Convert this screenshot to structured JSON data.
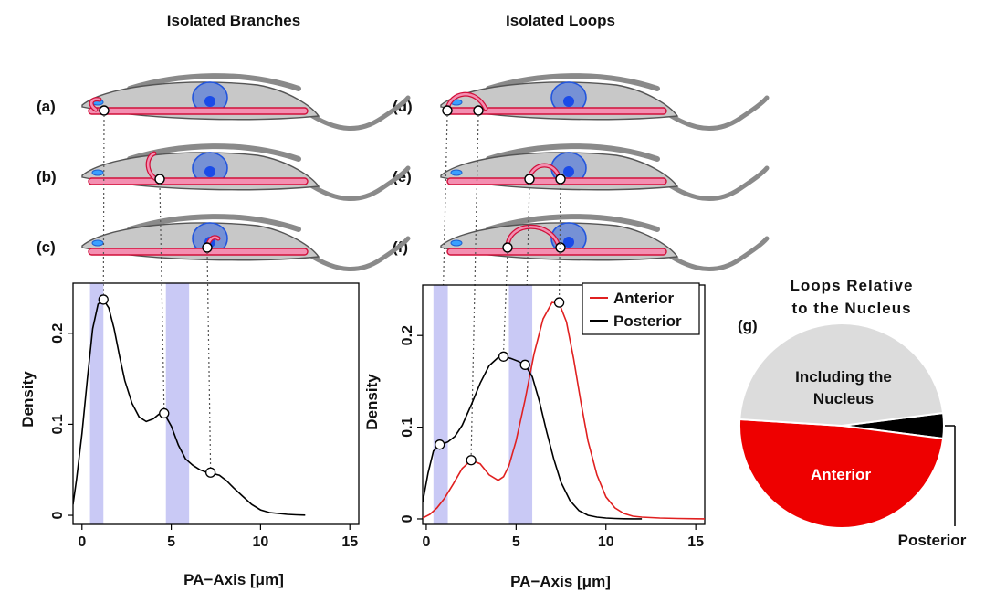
{
  "chart_data": [
    {
      "type": "line",
      "title": "Isolated Branches",
      "xlabel": "PA−Axis [μm]",
      "ylabel": "Density",
      "xlim": [
        -0.5,
        15.5
      ],
      "ylim": [
        -0.01,
        0.255
      ],
      "xticks": [
        0,
        5,
        10,
        15
      ],
      "yticks": [
        0,
        0.1,
        0.2
      ],
      "xtick_labels": [
        "0",
        "5",
        "10",
        "15"
      ],
      "ytick_labels": [
        "0",
        "0.1",
        "0.2"
      ],
      "shaded_x_ranges": [
        [
          0.45,
          1.2
        ],
        [
          4.7,
          6.0
        ]
      ],
      "series": [
        {
          "color": "#000000",
          "x": [
            -0.5,
            -0.3,
            0,
            0.3,
            0.6,
            0.9,
            1.2,
            1.5,
            1.8,
            2.1,
            2.4,
            2.8,
            3.2,
            3.6,
            4.0,
            4.3,
            4.6,
            5.0,
            5.4,
            5.8,
            6.2,
            6.6,
            7.0,
            7.3,
            7.7,
            8.1,
            8.5,
            9.0,
            9.5,
            10.0,
            10.5,
            11.0,
            11.5,
            12.0,
            12.5
          ],
          "y": [
            0.012,
            0.04,
            0.09,
            0.15,
            0.205,
            0.232,
            0.237,
            0.228,
            0.205,
            0.175,
            0.148,
            0.123,
            0.108,
            0.103,
            0.106,
            0.111,
            0.112,
            0.098,
            0.077,
            0.062,
            0.055,
            0.05,
            0.047,
            0.046,
            0.044,
            0.038,
            0.03,
            0.021,
            0.012,
            0.006,
            0.003,
            0.002,
            0.001,
            0.0005,
            0.0002
          ]
        }
      ],
      "markers": [
        {
          "x": 1.2,
          "y": 0.237
        },
        {
          "x": 4.6,
          "y": 0.112
        },
        {
          "x": 7.2,
          "y": 0.047
        }
      ]
    },
    {
      "type": "line",
      "title": "Isolated Loops",
      "xlabel": "PA−Axis [μm]",
      "ylabel": "Density",
      "xlim": [
        -0.2,
        15.5
      ],
      "ylim": [
        -0.006,
        0.255
      ],
      "xticks": [
        0,
        5,
        10,
        15
      ],
      "yticks": [
        0,
        0.1,
        0.2
      ],
      "xtick_labels": [
        "0",
        "5",
        "10",
        "15"
      ],
      "ytick_labels": [
        "0",
        "0.1",
        "0.2"
      ],
      "shaded_x_ranges": [
        [
          0.4,
          1.2
        ],
        [
          4.6,
          5.9
        ]
      ],
      "legend": {
        "position": "top-right",
        "entries": [
          {
            "label": "Anterior",
            "color": "#e02020"
          },
          {
            "label": "Posterior",
            "color": "#000000"
          }
        ]
      },
      "series": [
        {
          "name": "Anterior",
          "color": "#e02020",
          "x": [
            -0.2,
            0.2,
            0.6,
            1.0,
            1.5,
            2.0,
            2.5,
            3.0,
            3.5,
            4.0,
            4.3,
            4.6,
            5.0,
            5.5,
            6.0,
            6.5,
            7.0,
            7.4,
            7.8,
            8.2,
            8.6,
            9.0,
            9.5,
            10.0,
            10.5,
            11.0,
            11.5,
            12.0,
            13.0,
            14.0,
            15.0,
            15.5
          ],
          "y": [
            0.001,
            0.005,
            0.012,
            0.022,
            0.038,
            0.055,
            0.064,
            0.06,
            0.048,
            0.042,
            0.046,
            0.058,
            0.085,
            0.13,
            0.18,
            0.218,
            0.236,
            0.235,
            0.215,
            0.175,
            0.128,
            0.085,
            0.048,
            0.024,
            0.012,
            0.006,
            0.003,
            0.002,
            0.001,
            0.0005,
            0.0002,
            0.0001
          ]
        },
        {
          "name": "Posterior",
          "color": "#000000",
          "x": [
            -0.2,
            0.1,
            0.4,
            0.8,
            1.2,
            1.6,
            2.0,
            2.5,
            3.0,
            3.5,
            4.0,
            4.3,
            4.7,
            5.1,
            5.5,
            5.9,
            6.3,
            6.7,
            7.1,
            7.5,
            8.0,
            8.5,
            9.0,
            9.5,
            10.0,
            10.5,
            11.0,
            11.5,
            12.0
          ],
          "y": [
            0.018,
            0.05,
            0.074,
            0.081,
            0.084,
            0.09,
            0.102,
            0.124,
            0.148,
            0.167,
            0.176,
            0.177,
            0.175,
            0.172,
            0.168,
            0.155,
            0.128,
            0.095,
            0.065,
            0.04,
            0.02,
            0.009,
            0.004,
            0.002,
            0.001,
            0.0005,
            0.0002,
            0.0001,
            0.0001
          ]
        }
      ],
      "markers": [
        {
          "x": 0.75,
          "y": 0.081
        },
        {
          "x": 2.5,
          "y": 0.064
        },
        {
          "x": 4.3,
          "y": 0.177
        },
        {
          "x": 5.5,
          "y": 0.168
        },
        {
          "x": 7.4,
          "y": 0.236
        }
      ]
    },
    {
      "type": "pie",
      "title_lines": [
        "Loops Relative",
        "to the Nucleus"
      ],
      "slices": [
        {
          "label_lines": [
            "Including the",
            "Nucleus"
          ],
          "value": 47,
          "color": "#dcdcdc"
        },
        {
          "label_lines": [
            "Anterior"
          ],
          "value": 49,
          "color": "#ee0000"
        },
        {
          "label_lines": [
            "Posterior"
          ],
          "value": 4,
          "color": "#000000"
        }
      ]
    }
  ],
  "panel_labels": [
    "(a)",
    "(b)",
    "(c)",
    "(d)",
    "(e)",
    "(f)",
    "(g)"
  ]
}
